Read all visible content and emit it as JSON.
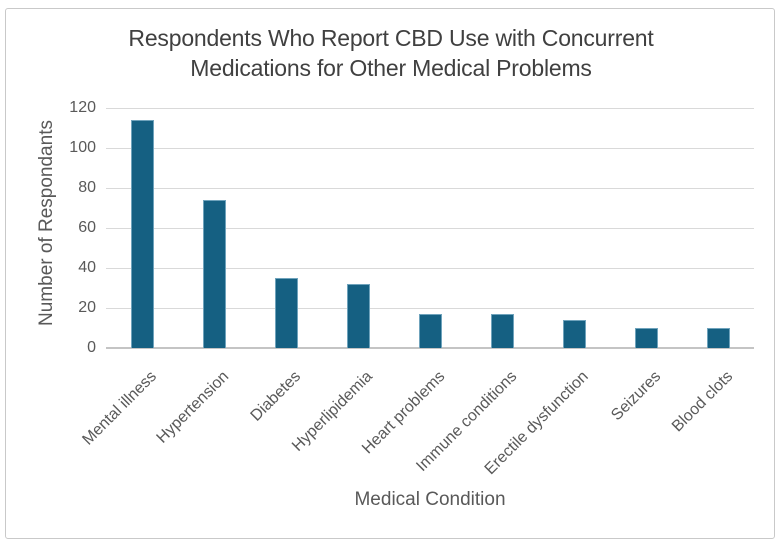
{
  "frame": {
    "background": "#FFFFFF",
    "border_color": "#C9C9C9"
  },
  "chart_data": {
    "type": "bar",
    "title": "Respondents Who Report CBD Use with Concurrent Medications for Other Medical Problems",
    "title_lines": [
      "Respondents Who Report CBD Use with Concurrent",
      "Medications for Other Medical Problems"
    ],
    "xlabel": "Medical Condition",
    "ylabel": "Number of Respondants",
    "categories": [
      "Mental illness",
      "Hypertension",
      "Diabetes",
      "Hyperlipidemia",
      "Heart problems",
      "Immune conditions",
      "Erectile dysfunction",
      "Seizures",
      "Blood clots"
    ],
    "values": [
      114,
      74,
      35,
      32,
      17,
      17,
      14,
      10,
      10
    ],
    "ylim": [
      0,
      120
    ],
    "yticks": [
      0,
      20,
      40,
      60,
      80,
      100,
      120
    ],
    "grid": true,
    "legend": "none",
    "bar_color": "#156082",
    "bar_border_color": "#6FA3BC",
    "gridline_color": "#D9D9D9",
    "axis_line_color": "#C4C4C4",
    "title_color": "#404040",
    "axis_text_color": "#595959"
  }
}
